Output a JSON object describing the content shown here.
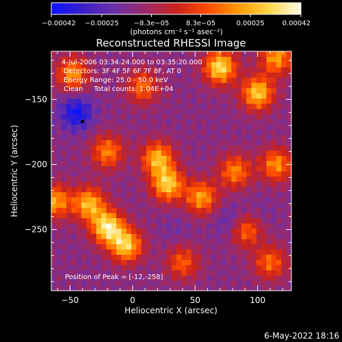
{
  "chart_data": {
    "type": "heatmap",
    "title": "Reconstructed RHESSI Image",
    "xlabel": "Heliocentric X (arcsec)",
    "ylabel": "Heliocentric Y (arcsec)",
    "xlim": [
      -65,
      127
    ],
    "ylim": [
      -297,
      -113
    ],
    "x_ticks": [
      -50,
      0,
      50,
      100
    ],
    "y_ticks": [
      -150,
      -200,
      -250
    ],
    "x_tick_labels": [
      "−50",
      "0",
      "50",
      "100"
    ],
    "y_tick_labels": [
      "−150",
      "−200",
      "−250"
    ],
    "colorbar": {
      "range": [
        -0.00042,
        0.00042
      ],
      "ticks": [
        -0.00042,
        -0.00025,
        -8.3e-05,
        8.3e-05,
        0.00025,
        0.00042
      ],
      "tick_labels": [
        "−0.00042",
        "−0.00025",
        "−8.3e−05",
        "8.3e−05",
        "0.00025",
        "0.00042"
      ],
      "unit_label": "(photons cm⁻² s⁻¹ asec⁻²)",
      "colors": [
        "#0a14ff",
        "#3a1fc8",
        "#6a2fa8",
        "#9a2a6a",
        "#c8221e",
        "#ff4a00",
        "#ff9a00",
        "#ffd84a",
        "#fffce8"
      ]
    },
    "annotations": [
      "4-Jul-2006 03:34:24.000 to 03:35:20.000",
      "Detectors: 3F 4F 5F 6F 7F 8F, AT 0",
      "Energy Range: 25.0 - 50.0 keV",
      "Clean     Total counts: 1.04E+04",
      "Position of Peak = [-12,-258]"
    ],
    "peak_marker": [
      -40,
      -167
    ],
    "peak": [
      -12,
      -258
    ],
    "hotspots": [
      {
        "x": 70,
        "y": -125,
        "value": 0.00034
      },
      {
        "x": 100,
        "y": -145,
        "value": 0.0003
      },
      {
        "x": 115,
        "y": -118,
        "value": 0.00022
      },
      {
        "x": 20,
        "y": -195,
        "value": 0.00026
      },
      {
        "x": 28,
        "y": -215,
        "value": 0.0003
      },
      {
        "x": 55,
        "y": -225,
        "value": 0.00022
      },
      {
        "x": 82,
        "y": -205,
        "value": 0.00018
      },
      {
        "x": -20,
        "y": -190,
        "value": 0.00018
      },
      {
        "x": -35,
        "y": -230,
        "value": 0.00026
      },
      {
        "x": -20,
        "y": -248,
        "value": 0.00036
      },
      {
        "x": -5,
        "y": -262,
        "value": 0.0003
      },
      {
        "x": -48,
        "y": -130,
        "value": 0.0002
      },
      {
        "x": -62,
        "y": -228,
        "value": 0.00022
      },
      {
        "x": 90,
        "y": -250,
        "value": 0.00018
      },
      {
        "x": 115,
        "y": -200,
        "value": 0.0002
      },
      {
        "x": 110,
        "y": -275,
        "value": 0.00014
      },
      {
        "x": 40,
        "y": -275,
        "value": 0.00012
      },
      {
        "x": 8,
        "y": -140,
        "value": 0.00014
      }
    ],
    "coldspots": [
      {
        "x": -45,
        "y": -160,
        "value": -0.0004
      },
      {
        "x": 80,
        "y": -245,
        "value": -0.00028
      },
      {
        "x": 35,
        "y": -250,
        "value": -0.00018
      },
      {
        "x": 100,
        "y": -238,
        "value": -0.00018
      }
    ]
  },
  "footer_date": "6-May-2022 18:16"
}
